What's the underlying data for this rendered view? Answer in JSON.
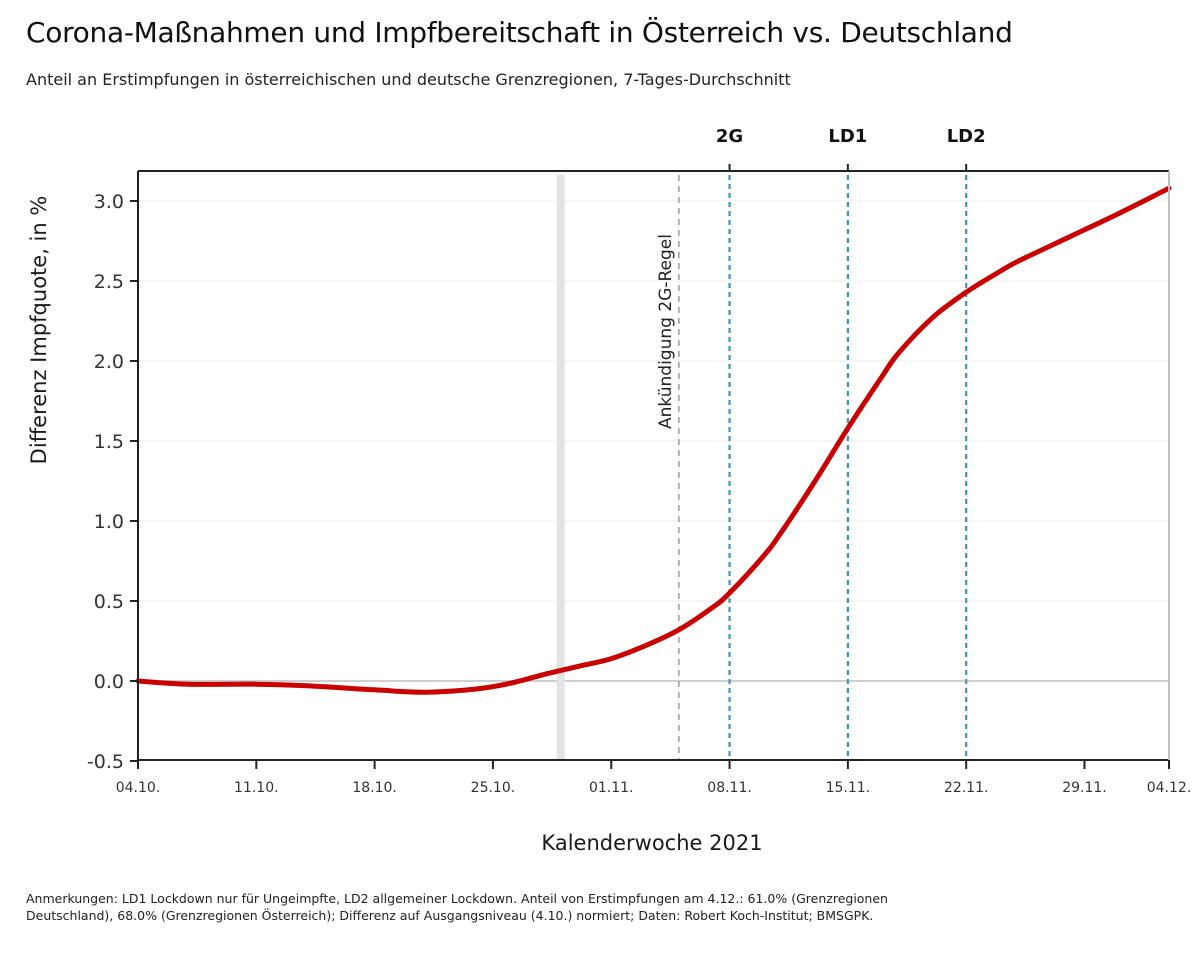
{
  "header": {
    "title": "Corona-Maßnahmen und Impfbereitschaft in Österreich vs. Deutschland",
    "subtitle": "Anteil an Erstimpfungen in österreichischen und deutsche Grenzregionen, 7-Tages-Durchschnitt"
  },
  "footnote": {
    "line1": "Anmerkungen: LD1 Lockdown nur für Ungeimpfte, LD2 allgemeiner Lockdown. Anteil von Erstimpfungen am 4.12.:  61.0% (Grenzregionen",
    "line2": "Deutschland),  68.0% (Grenzregionen Österreich); Differenz auf Ausgangsniveau (4.10.) normiert; Daten: Robert Koch-Institut; BMSGPK."
  },
  "colors": {
    "line": "#c80000",
    "event_line": "#3b97b3",
    "announcement_line": "#9a9a9a",
    "band": "#e3e3e3",
    "grid": "#f0f0f0",
    "zero_line": "#cfcfcf",
    "axis": "#222222"
  },
  "chart_data": {
    "type": "line",
    "title": "Corona-Maßnahmen und Impfbereitschaft in Österreich vs. Deutschland",
    "subtitle": "Anteil an Erstimpfungen in österreichischen und deutsche Grenzregionen, 7-Tages-Durchschnitt",
    "xlabel": "Kalenderwoche 2021",
    "ylabel": "Differenz Impfquote, in %",
    "x_unit": "days since 04.10.2021",
    "xlim": [
      0,
      61
    ],
    "ylim": [
      -0.5,
      3.2
    ],
    "grid": true,
    "x_ticks": [
      {
        "day": 0,
        "label": "04.10."
      },
      {
        "day": 7,
        "label": "11.10."
      },
      {
        "day": 14,
        "label": "18.10."
      },
      {
        "day": 21,
        "label": "25.10."
      },
      {
        "day": 28,
        "label": "01.11."
      },
      {
        "day": 35,
        "label": "08.11."
      },
      {
        "day": 42,
        "label": "15.11."
      },
      {
        "day": 49,
        "label": "22.11."
      },
      {
        "day": 56,
        "label": "29.11."
      },
      {
        "day": 61,
        "label": "04.12."
      }
    ],
    "y_ticks": [
      {
        "value": -0.5,
        "label": "-0.5"
      },
      {
        "value": 0.0,
        "label": "0.0"
      },
      {
        "value": 0.5,
        "label": "0.5"
      },
      {
        "value": 1.0,
        "label": "1.0"
      },
      {
        "value": 1.5,
        "label": "1.5"
      },
      {
        "value": 2.0,
        "label": "2.0"
      },
      {
        "value": 2.5,
        "label": "2.5"
      },
      {
        "value": 3.0,
        "label": "3.0"
      }
    ],
    "series": [
      {
        "name": "Differenz Impfquote",
        "x": [
          0,
          3,
          7,
          10,
          14,
          17,
          20,
          22,
          24,
          26,
          28,
          30,
          32,
          34,
          35,
          37,
          38,
          40,
          42,
          44,
          45,
          47,
          49,
          51,
          52,
          54,
          56,
          58,
          61
        ],
        "values": [
          0.0,
          -0.02,
          -0.02,
          -0.03,
          -0.055,
          -0.07,
          -0.05,
          -0.015,
          0.04,
          0.09,
          0.14,
          0.22,
          0.32,
          0.46,
          0.55,
          0.78,
          0.92,
          1.24,
          1.58,
          1.9,
          2.05,
          2.27,
          2.43,
          2.56,
          2.62,
          2.72,
          2.82,
          2.92,
          3.08
        ]
      }
    ],
    "event_lines": [
      {
        "day": 35,
        "label": "2G"
      },
      {
        "day": 42,
        "label": "LD1"
      },
      {
        "day": 49,
        "label": "LD2"
      }
    ],
    "annotation_line": {
      "day": 32,
      "label": "Ankündigung 2G-Regel"
    },
    "shaded_marker": {
      "day": 25
    }
  }
}
